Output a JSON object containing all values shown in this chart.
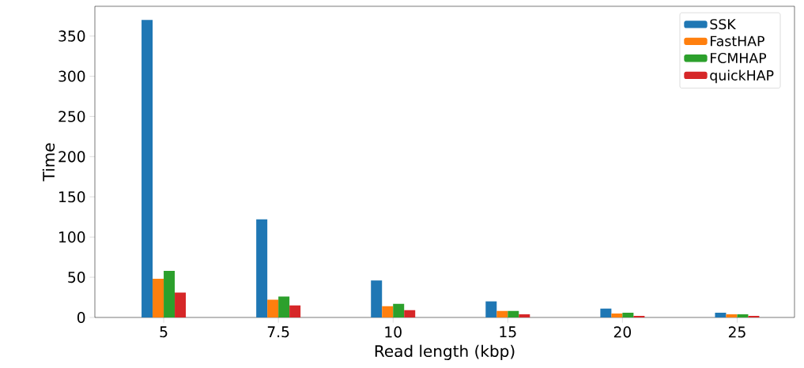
{
  "chart_data": {
    "type": "bar",
    "xlabel": "Read length (kbp)",
    "ylabel": "Time",
    "categories": [
      "5",
      "7.5",
      "10",
      "15",
      "20",
      "25"
    ],
    "series": [
      {
        "name": "SSK",
        "color": "#1f77b4",
        "values": [
          370,
          122,
          46,
          20,
          11,
          6
        ]
      },
      {
        "name": "FastHAP",
        "color": "#ff7f0e",
        "values": [
          48,
          22,
          14,
          8,
          5,
          4
        ]
      },
      {
        "name": "FCMHAP",
        "color": "#2ca02c",
        "values": [
          58,
          26,
          17,
          8,
          6,
          4
        ]
      },
      {
        "name": "quickHAP",
        "color": "#d62728",
        "values": [
          31,
          15,
          9,
          4,
          2,
          2
        ]
      }
    ],
    "ylim": [
      0,
      387
    ],
    "yticks": [
      0,
      50,
      100,
      150,
      200,
      250,
      300,
      350
    ],
    "grid": false,
    "legend": "top right"
  }
}
